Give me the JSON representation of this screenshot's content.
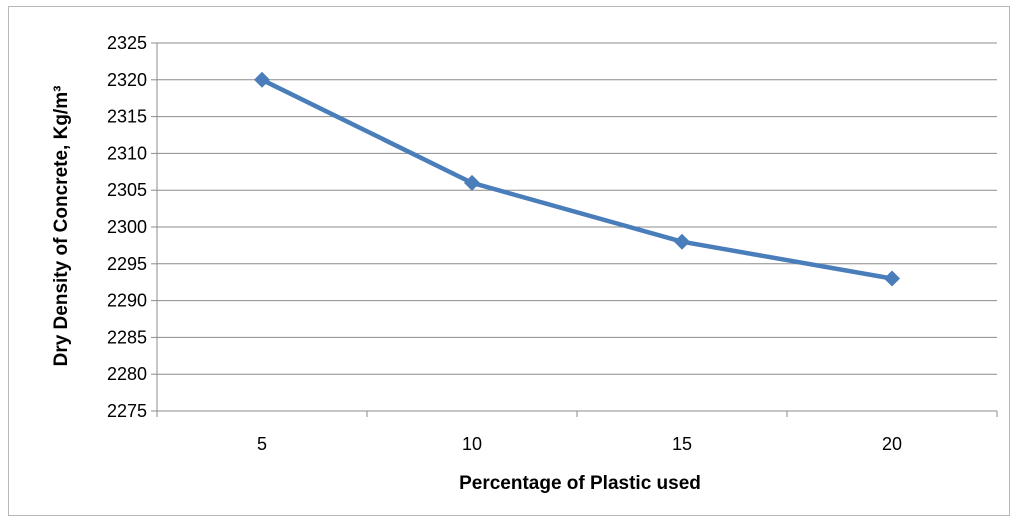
{
  "chart_data": {
    "type": "line",
    "title": "",
    "xlabel": "Percentage of Plastic used",
    "ylabel": "Dry Density of Concrete, Kg/m³",
    "categories": [
      "5",
      "10",
      "15",
      "20"
    ],
    "series": [
      {
        "values": [
          2320,
          2306,
          2298,
          2293
        ],
        "color": "#4a7ebb",
        "marker": "diamond"
      }
    ],
    "ylim": [
      2275,
      2325
    ],
    "y_ticks": [
      "2275",
      "2280",
      "2285",
      "2290",
      "2295",
      "2300",
      "2305",
      "2310",
      "2315",
      "2320",
      "2325"
    ],
    "grid": "horizontal",
    "legend": "none"
  }
}
